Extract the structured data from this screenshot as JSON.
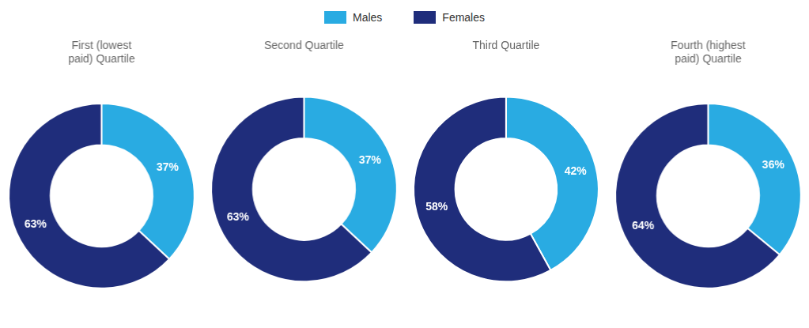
{
  "chart_data": [
    {
      "type": "doughnut",
      "title": "First (lowest\npaid) Quartile",
      "categories": [
        "Males",
        "Females"
      ],
      "values": [
        37,
        63
      ],
      "value_labels": [
        "37%",
        "63%"
      ],
      "colors": [
        "#29ABE2",
        "#1F2D7B"
      ],
      "data_labels": true,
      "legend": "top"
    },
    {
      "type": "doughnut",
      "title": "Second Quartile",
      "categories": [
        "Males",
        "Females"
      ],
      "values": [
        37,
        63
      ],
      "value_labels": [
        "37%",
        "63%"
      ],
      "colors": [
        "#29ABE2",
        "#1F2D7B"
      ],
      "data_labels": true
    },
    {
      "type": "doughnut",
      "title": "Third Quartile",
      "categories": [
        "Males",
        "Females"
      ],
      "values": [
        42,
        58
      ],
      "value_labels": [
        "42%",
        "58%"
      ],
      "colors": [
        "#29ABE2",
        "#1F2D7B"
      ],
      "data_labels": true
    },
    {
      "type": "doughnut",
      "title": "Fourth (highest\npaid) Quartile",
      "categories": [
        "Males",
        "Females"
      ],
      "values": [
        36,
        64
      ],
      "value_labels": [
        "36%",
        "64%"
      ],
      "colors": [
        "#29ABE2",
        "#1F2D7B"
      ],
      "data_labels": true
    }
  ]
}
